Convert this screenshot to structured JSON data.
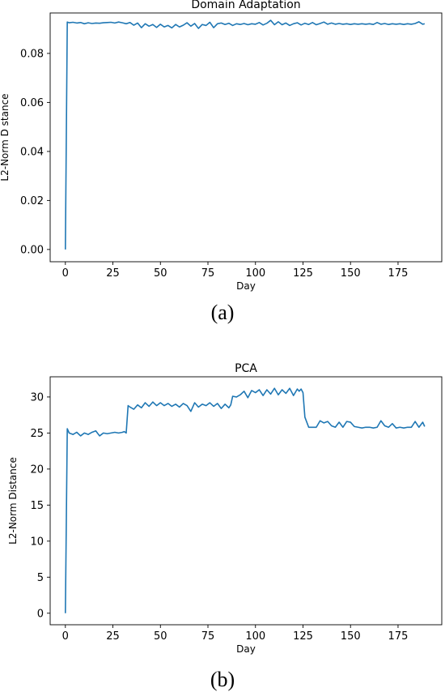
{
  "chart_data": [
    {
      "type": "line",
      "title": "Domain Adaptation",
      "xlabel": "Day",
      "ylabel": "L2-Norm D stance",
      "xlim": [
        -8,
        198
      ],
      "ylim": [
        -0.005,
        0.0965
      ],
      "xticks": [
        0,
        25,
        50,
        75,
        100,
        125,
        150,
        175
      ],
      "yticks": [
        0.0,
        0.02,
        0.04,
        0.06,
        0.08
      ],
      "ytick_labels": [
        "0.00",
        "0.02",
        "0.04",
        "0.06",
        "0.08"
      ],
      "grid": false,
      "series_color": "#1f77b4",
      "x": [
        0,
        1,
        2,
        4,
        6,
        8,
        10,
        12,
        14,
        16,
        18,
        20,
        22,
        24,
        26,
        28,
        30,
        32,
        34,
        36,
        38,
        40,
        42,
        44,
        46,
        48,
        50,
        52,
        54,
        56,
        58,
        60,
        62,
        64,
        66,
        68,
        70,
        72,
        74,
        76,
        78,
        80,
        82,
        84,
        86,
        88,
        90,
        92,
        94,
        96,
        98,
        100,
        102,
        104,
        106,
        108,
        110,
        112,
        114,
        116,
        118,
        120,
        122,
        124,
        126,
        128,
        130,
        132,
        134,
        136,
        138,
        140,
        142,
        144,
        146,
        148,
        150,
        152,
        154,
        156,
        158,
        160,
        162,
        164,
        166,
        168,
        170,
        172,
        174,
        176,
        178,
        180,
        182,
        184,
        186,
        188,
        189
      ],
      "series": [
        {
          "values": [
            0.0,
            0.0928,
            0.0925,
            0.0927,
            0.0924,
            0.0926,
            0.0921,
            0.0925,
            0.0922,
            0.0924,
            0.0923,
            0.0925,
            0.0926,
            0.0927,
            0.0924,
            0.0928,
            0.0925,
            0.0921,
            0.0926,
            0.0915,
            0.0924,
            0.0905,
            0.0921,
            0.0911,
            0.0918,
            0.0906,
            0.0919,
            0.0908,
            0.0914,
            0.0904,
            0.0918,
            0.0908,
            0.0915,
            0.0925,
            0.0911,
            0.0922,
            0.0902,
            0.0918,
            0.0914,
            0.0927,
            0.0905,
            0.0921,
            0.0924,
            0.0918,
            0.0923,
            0.0914,
            0.0921,
            0.0918,
            0.0922,
            0.0917,
            0.0921,
            0.0919,
            0.0926,
            0.0916,
            0.0923,
            0.0935,
            0.0917,
            0.0929,
            0.0917,
            0.0924,
            0.0914,
            0.0921,
            0.0925,
            0.0916,
            0.0923,
            0.0918,
            0.0926,
            0.0917,
            0.0922,
            0.0928,
            0.0919,
            0.0924,
            0.0919,
            0.0922,
            0.0919,
            0.0921,
            0.0918,
            0.0921,
            0.0919,
            0.0921,
            0.0919,
            0.0921,
            0.0918,
            0.0926,
            0.0919,
            0.0922,
            0.0918,
            0.0921,
            0.0919,
            0.0921,
            0.0918,
            0.0921,
            0.0919,
            0.0922,
            0.0929,
            0.0919,
            0.0921
          ]
        }
      ]
    },
    {
      "type": "line",
      "title": "PCA",
      "xlabel": "Day",
      "ylabel": "L2-Norm Distance",
      "xlim": [
        -8,
        198
      ],
      "ylim": [
        -1.6,
        32.8
      ],
      "xticks": [
        0,
        25,
        50,
        75,
        100,
        125,
        150,
        175
      ],
      "yticks": [
        0,
        5,
        10,
        15,
        20,
        25,
        30
      ],
      "ytick_labels": [
        "0",
        "5",
        "10",
        "15",
        "20",
        "25",
        "30"
      ],
      "grid": false,
      "series_color": "#1f77b4",
      "x": [
        0,
        1,
        2,
        4,
        6,
        8,
        10,
        12,
        14,
        16,
        18,
        20,
        22,
        24,
        26,
        28,
        30,
        31,
        32,
        33,
        34,
        36,
        38,
        40,
        42,
        44,
        46,
        48,
        50,
        52,
        54,
        56,
        58,
        60,
        62,
        64,
        66,
        68,
        70,
        72,
        74,
        76,
        78,
        80,
        82,
        84,
        86,
        87,
        88,
        90,
        92,
        94,
        96,
        98,
        100,
        102,
        104,
        106,
        108,
        110,
        112,
        114,
        116,
        118,
        120,
        122,
        123,
        124,
        125,
        126,
        128,
        130,
        132,
        134,
        136,
        138,
        140,
        142,
        144,
        146,
        148,
        150,
        152,
        154,
        156,
        158,
        160,
        162,
        164,
        166,
        168,
        170,
        172,
        174,
        176,
        178,
        180,
        182,
        184,
        186,
        188,
        189
      ],
      "series": [
        {
          "values": [
            0.0,
            25.6,
            25.0,
            24.8,
            25.1,
            24.6,
            25.0,
            24.8,
            25.1,
            25.3,
            24.6,
            25.0,
            24.9,
            25.0,
            25.1,
            25.0,
            25.1,
            25.2,
            25.0,
            28.8,
            28.6,
            28.3,
            28.9,
            28.5,
            29.2,
            28.7,
            29.3,
            28.8,
            29.2,
            28.8,
            29.1,
            28.7,
            29.0,
            28.6,
            29.1,
            28.8,
            28.0,
            29.2,
            28.6,
            29.0,
            28.8,
            29.2,
            28.7,
            29.1,
            28.4,
            29.0,
            28.5,
            28.9,
            30.1,
            30.0,
            30.3,
            30.8,
            29.9,
            30.9,
            30.6,
            31.0,
            30.2,
            31.0,
            30.4,
            31.2,
            30.3,
            31.0,
            30.5,
            31.2,
            30.2,
            31.1,
            30.8,
            31.1,
            30.6,
            27.2,
            25.8,
            25.8,
            25.8,
            26.7,
            26.4,
            26.6,
            26.0,
            25.8,
            26.5,
            25.8,
            26.6,
            26.5,
            25.9,
            25.8,
            25.7,
            25.8,
            25.8,
            25.7,
            25.8,
            26.7,
            26.0,
            25.8,
            26.3,
            25.7,
            25.8,
            25.7,
            25.8,
            25.8,
            26.6,
            25.8,
            26.5,
            25.9
          ]
        }
      ]
    }
  ],
  "captions": [
    "(a)",
    "(b)"
  ]
}
